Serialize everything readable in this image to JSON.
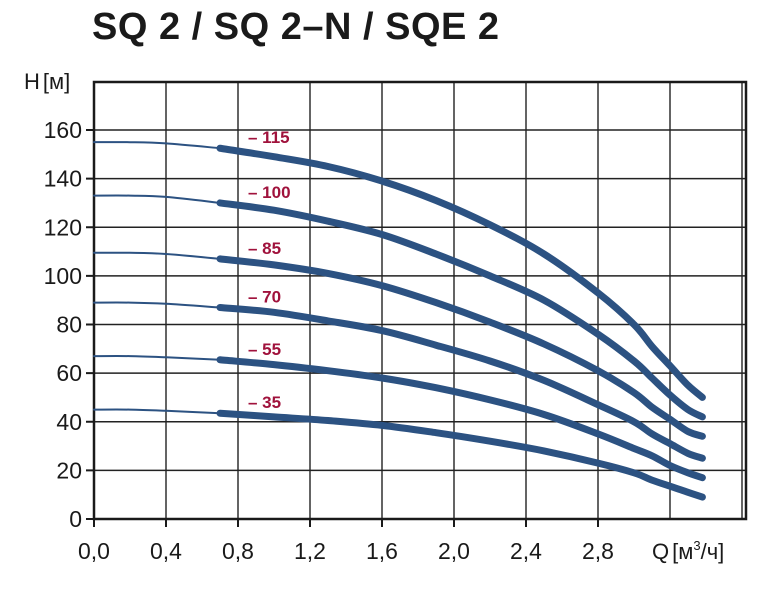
{
  "chart_data": {
    "type": "line",
    "title": "SQ 2 / SQ 2–N / SQE 2",
    "xlabel": "Q",
    "xunit_prefix": "м",
    "xunit_sup": "3",
    "xunit_suffix": "/ч",
    "ylabel": "H",
    "yunit": "м",
    "xlim": [
      0,
      3.8
    ],
    "ylim": [
      0,
      180
    ],
    "xticks": [
      "0,0",
      "0,4",
      "0,8",
      "1,2",
      "1,6",
      "2,0",
      "2,4",
      "2,8"
    ],
    "xtick_values": [
      0,
      0.4,
      0.8,
      1.2,
      1.6,
      2.0,
      2.4,
      2.8
    ],
    "yticks": [
      "0",
      "20",
      "40",
      "60",
      "80",
      "100",
      "120",
      "140",
      "160"
    ],
    "ytick_values": [
      0,
      20,
      40,
      60,
      80,
      100,
      120,
      140,
      160
    ],
    "grid": true,
    "line_color": "#2c5282",
    "label_color": "#a0123c",
    "series": [
      {
        "name": "– 115",
        "points": [
          [
            0.0,
            155
          ],
          [
            0.2,
            155
          ],
          [
            0.4,
            154.5
          ],
          [
            0.7,
            152.5
          ],
          [
            1.0,
            149
          ],
          [
            1.3,
            145
          ],
          [
            1.6,
            139
          ],
          [
            1.9,
            131
          ],
          [
            2.2,
            121
          ],
          [
            2.5,
            109
          ],
          [
            2.8,
            93
          ],
          [
            3.0,
            80
          ],
          [
            3.1,
            71
          ],
          [
            3.2,
            63
          ],
          [
            3.3,
            55
          ],
          [
            3.38,
            50
          ]
        ]
      },
      {
        "name": "– 100",
        "points": [
          [
            0.0,
            133
          ],
          [
            0.2,
            133
          ],
          [
            0.4,
            132.5
          ],
          [
            0.7,
            130
          ],
          [
            1.0,
            127
          ],
          [
            1.3,
            122.5
          ],
          [
            1.6,
            117
          ],
          [
            1.9,
            109
          ],
          [
            2.2,
            100
          ],
          [
            2.5,
            90
          ],
          [
            2.8,
            76
          ],
          [
            3.0,
            65
          ],
          [
            3.1,
            58
          ],
          [
            3.2,
            51
          ],
          [
            3.3,
            45
          ],
          [
            3.38,
            42
          ]
        ]
      },
      {
        "name": "– 85",
        "points": [
          [
            0.0,
            109.5
          ],
          [
            0.2,
            109.5
          ],
          [
            0.4,
            109
          ],
          [
            0.7,
            107
          ],
          [
            1.0,
            104.5
          ],
          [
            1.3,
            101
          ],
          [
            1.6,
            96
          ],
          [
            1.9,
            89
          ],
          [
            2.2,
            81
          ],
          [
            2.5,
            72
          ],
          [
            2.8,
            61
          ],
          [
            3.0,
            52
          ],
          [
            3.1,
            46
          ],
          [
            3.2,
            41
          ],
          [
            3.3,
            36
          ],
          [
            3.38,
            34
          ]
        ]
      },
      {
        "name": "– 70",
        "points": [
          [
            0.0,
            89
          ],
          [
            0.2,
            89
          ],
          [
            0.4,
            88.5
          ],
          [
            0.7,
            87
          ],
          [
            1.0,
            85
          ],
          [
            1.3,
            81.5
          ],
          [
            1.6,
            77.5
          ],
          [
            1.9,
            71.5
          ],
          [
            2.2,
            65
          ],
          [
            2.5,
            57
          ],
          [
            2.8,
            47
          ],
          [
            3.0,
            40
          ],
          [
            3.1,
            35
          ],
          [
            3.2,
            31
          ],
          [
            3.3,
            27
          ],
          [
            3.38,
            25
          ]
        ]
      },
      {
        "name": "– 55",
        "points": [
          [
            0.0,
            67
          ],
          [
            0.2,
            67
          ],
          [
            0.4,
            66.5
          ],
          [
            0.7,
            65.5
          ],
          [
            1.0,
            63.5
          ],
          [
            1.3,
            61
          ],
          [
            1.6,
            58
          ],
          [
            1.9,
            54
          ],
          [
            2.2,
            49
          ],
          [
            2.5,
            43
          ],
          [
            2.8,
            35
          ],
          [
            3.0,
            29
          ],
          [
            3.1,
            26
          ],
          [
            3.2,
            22
          ],
          [
            3.3,
            19
          ],
          [
            3.38,
            17
          ]
        ]
      },
      {
        "name": "– 35",
        "points": [
          [
            0.0,
            45
          ],
          [
            0.2,
            45
          ],
          [
            0.4,
            44.5
          ],
          [
            0.7,
            43.5
          ],
          [
            1.0,
            42
          ],
          [
            1.3,
            40.5
          ],
          [
            1.6,
            38.5
          ],
          [
            1.9,
            35.5
          ],
          [
            2.2,
            32
          ],
          [
            2.5,
            28
          ],
          [
            2.8,
            23
          ],
          [
            3.0,
            19
          ],
          [
            3.1,
            16
          ],
          [
            3.2,
            13.5
          ],
          [
            3.3,
            11
          ],
          [
            3.38,
            9
          ]
        ]
      }
    ],
    "thin_segment_until_x": 0.7
  }
}
